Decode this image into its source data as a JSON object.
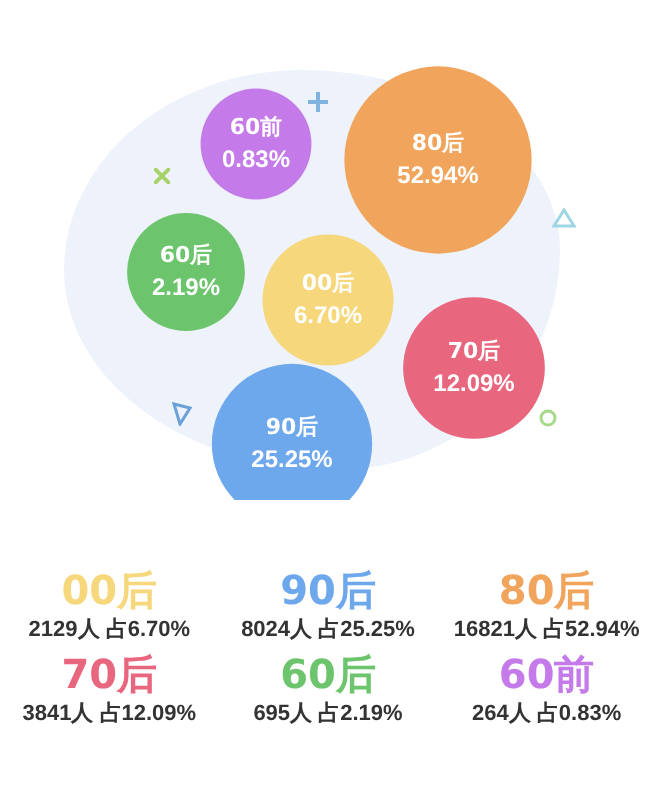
{
  "chart_data": {
    "type": "other",
    "categories": [
      "00后",
      "90后",
      "80后",
      "70后",
      "60后",
      "60前"
    ],
    "values": [
      6.7,
      25.25,
      52.94,
      12.09,
      2.19,
      0.83
    ],
    "value_labels": [
      "6.70%",
      "25.25%",
      "52.94%",
      "12.09%",
      "2.19%",
      "0.83%"
    ],
    "colors": [
      "#f6d77c",
      "#6ea8ec",
      "#f0a45c",
      "#e9667f",
      "#6cc46c",
      "#c57ae9"
    ],
    "annotations": [
      "2129人 占6.70%",
      "8024人 占25.25%",
      "16821人 占52.94%",
      "3841人 占12.09%",
      "695人 占2.19%",
      "264人 占0.83%"
    ]
  }
}
